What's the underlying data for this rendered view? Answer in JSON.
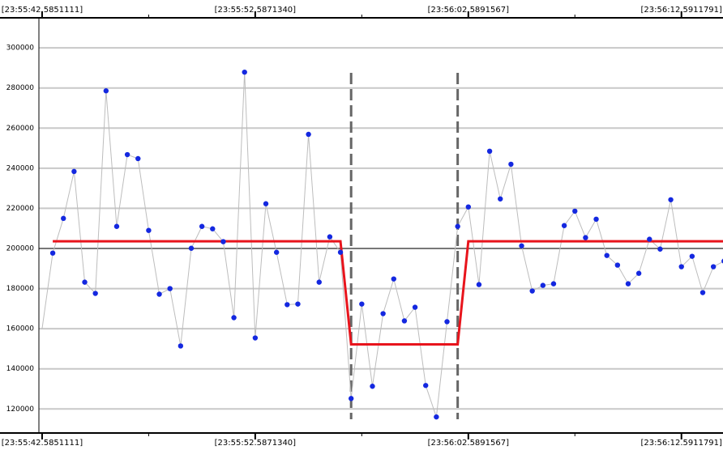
{
  "chart_data": {
    "type": "line",
    "series": [
      {
        "line_color": "#bdbdbd",
        "marker_color": "#1428e0",
        "values": [
          160000,
          197700,
          215000,
          238400,
          183200,
          177600,
          278600,
          211000,
          246800,
          244800,
          209000,
          177200,
          180000,
          151400,
          200100,
          211000,
          209800,
          203400,
          165500,
          287900,
          155400,
          222300,
          198100,
          172000,
          172300,
          256900,
          183200,
          205800,
          198100,
          125200,
          172300,
          131300,
          167500,
          184800,
          163900,
          170700,
          131700,
          116000,
          163500,
          211000,
          220700,
          182000,
          248500,
          224700,
          242000,
          201300,
          178800,
          181600,
          182400,
          211400,
          218600,
          205400,
          214600,
          196500,
          191700,
          182400,
          187600,
          204600,
          199700,
          224300,
          190900,
          196100,
          178000,
          190900,
          193700
        ]
      },
      {
        "color": "#e8141c",
        "x": [
          1,
          28,
          29,
          39,
          40,
          64
        ],
        "values": [
          203600,
          203600,
          152200,
          152200,
          203600,
          203600
        ]
      }
    ],
    "change_points": [
      29,
      39
    ],
    "reference_line": 200000,
    "xlim": [
      -0.3,
      63.9
    ],
    "xticks": [
      {
        "value": 0,
        "label": "[23:55:42.5851111]"
      },
      {
        "value": 20,
        "label": "[23:55:52.5871340]"
      },
      {
        "value": 40,
        "label": "[23:56:02.5891567]"
      },
      {
        "value": 60,
        "label": "[23:56:12.5911791]"
      }
    ],
    "xminor": [
      10,
      30,
      50
    ],
    "ylim": [
      108000,
      315000
    ],
    "yticks": [
      120000,
      140000,
      160000,
      180000,
      200000,
      220000,
      240000,
      260000,
      280000,
      300000
    ],
    "grid": true
  }
}
